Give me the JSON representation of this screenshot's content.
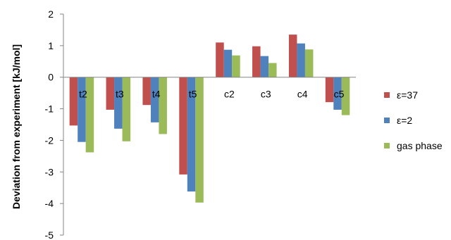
{
  "chart_data": {
    "type": "bar",
    "title": "",
    "xlabel": "",
    "ylabel": "Deviation from experiment [kJ/mol]",
    "ylim": [
      -5,
      2
    ],
    "yticks": [
      "2",
      "1",
      "0",
      "-1",
      "-2",
      "-3",
      "-4",
      "-5"
    ],
    "ytick_values": [
      2,
      1,
      0,
      -1,
      -2,
      -3,
      -4,
      -5
    ],
    "grid": false,
    "legend_position": "right",
    "categories": [
      "t2",
      "t3",
      "t4",
      "t5",
      "c2",
      "c3",
      "c4",
      "c5"
    ],
    "series": [
      {
        "name": "ε=37",
        "color": "#C0504D",
        "values": [
          -1.53,
          -1.03,
          -0.88,
          -3.08,
          1.1,
          0.98,
          1.35,
          -0.79
        ]
      },
      {
        "name": "ε=2",
        "color": "#4F81BD",
        "values": [
          -2.05,
          -1.63,
          -1.43,
          -3.62,
          0.87,
          0.67,
          1.07,
          -1.03
        ]
      },
      {
        "name": "gas phase",
        "color": "#9BBB59",
        "values": [
          -2.38,
          -2.03,
          -1.8,
          -3.97,
          0.69,
          0.45,
          0.88,
          -1.2
        ]
      }
    ]
  }
}
